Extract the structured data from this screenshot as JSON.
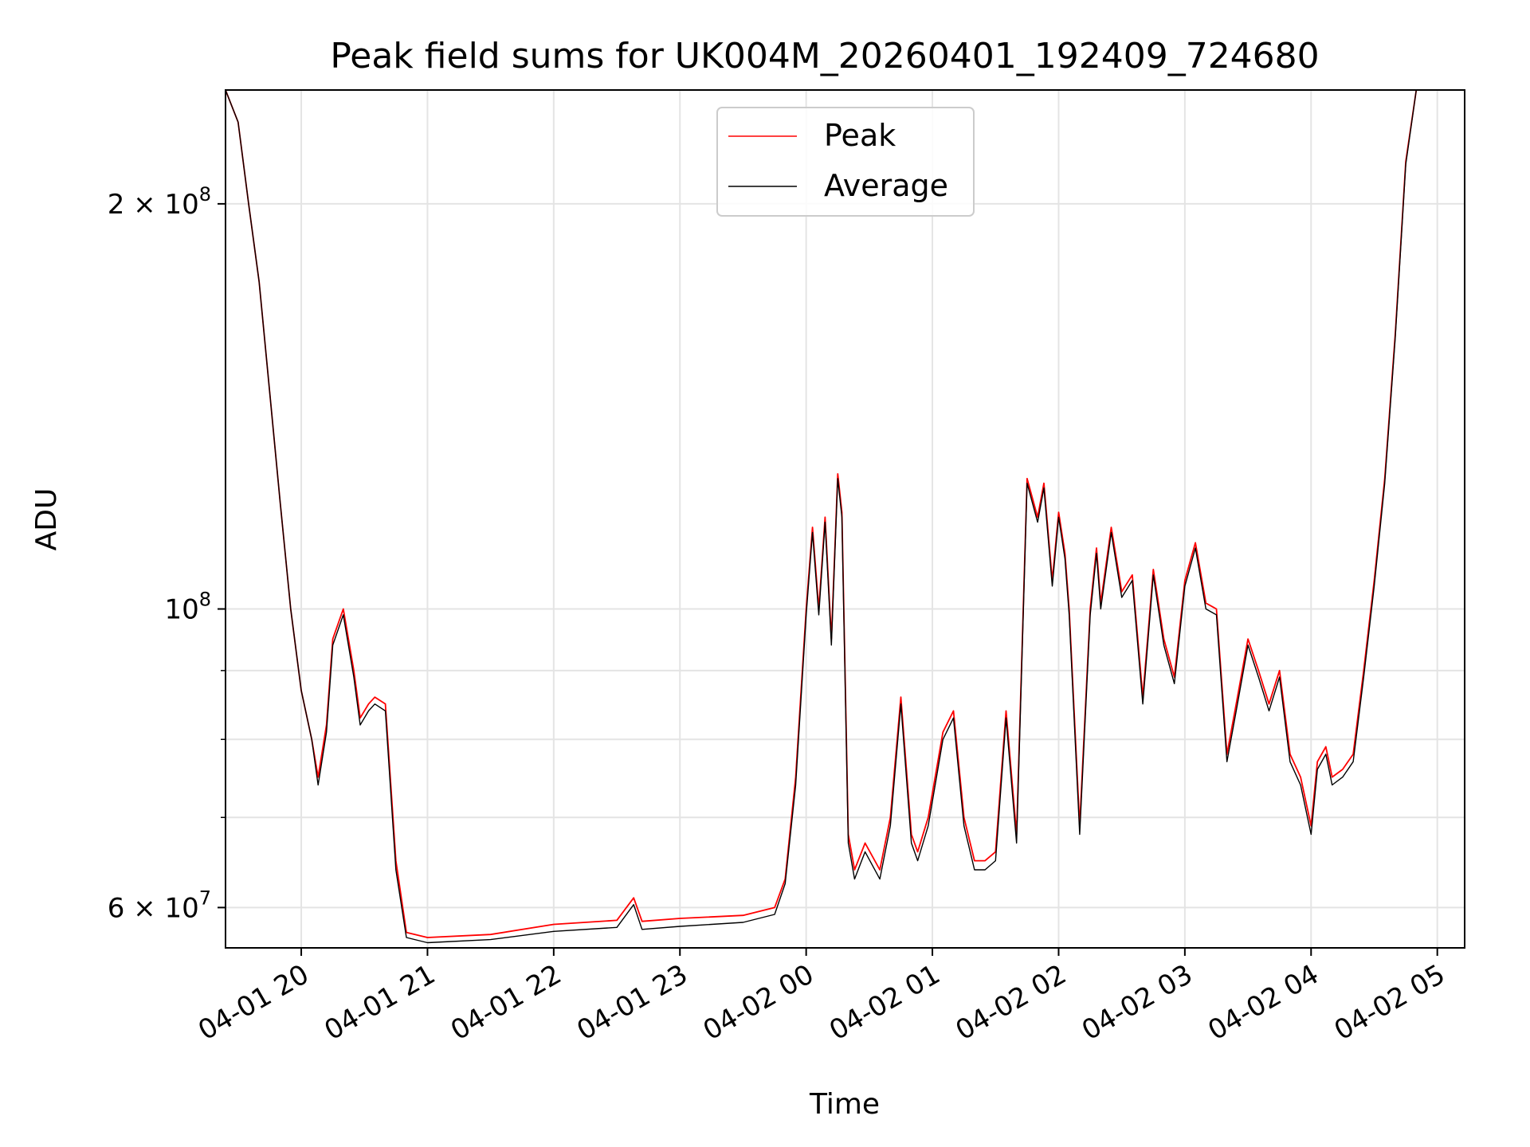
{
  "chart_data": {
    "type": "line",
    "title": "Peak field sums for UK004M_20260401_192409_724680",
    "xlabel": "Time",
    "ylabel": "ADU",
    "y_scale": "log",
    "ylim": [
      56000000,
      243000000
    ],
    "xlim": [
      "2026-04-01 19:24",
      "2026-04-02 05:13"
    ],
    "grid": true,
    "legend_position": "top-center",
    "x_ticks": [
      {
        "value": "2026-04-01 20:00",
        "label": "04-01 20"
      },
      {
        "value": "2026-04-01 21:00",
        "label": "04-01 21"
      },
      {
        "value": "2026-04-01 22:00",
        "label": "04-01 22"
      },
      {
        "value": "2026-04-01 23:00",
        "label": "04-01 23"
      },
      {
        "value": "2026-04-02 00:00",
        "label": "04-02 00"
      },
      {
        "value": "2026-04-02 01:00",
        "label": "04-02 01"
      },
      {
        "value": "2026-04-02 02:00",
        "label": "04-02 02"
      },
      {
        "value": "2026-04-02 03:00",
        "label": "04-02 03"
      },
      {
        "value": "2026-04-02 04:00",
        "label": "04-02 04"
      },
      {
        "value": "2026-04-02 05:00",
        "label": "04-02 05"
      }
    ],
    "y_ticks": [
      {
        "value": 200000000,
        "label": "2 × 10",
        "exp": "8"
      },
      {
        "value": 100000000,
        "label": "10",
        "exp": "8"
      },
      {
        "value": 60000000,
        "label": "6 × 10",
        "exp": "7"
      }
    ],
    "y_minor_ticks": [
      70000000,
      80000000,
      90000000
    ],
    "x": [
      "2026-04-01 19:24",
      "2026-04-01 19:30",
      "2026-04-01 19:35",
      "2026-04-01 19:40",
      "2026-04-01 19:45",
      "2026-04-01 19:50",
      "2026-04-01 19:55",
      "2026-04-01 20:00",
      "2026-04-01 20:05",
      "2026-04-01 20:08",
      "2026-04-01 20:12",
      "2026-04-01 20:15",
      "2026-04-01 20:20",
      "2026-04-01 20:25",
      "2026-04-01 20:28",
      "2026-04-01 20:32",
      "2026-04-01 20:35",
      "2026-04-01 20:40",
      "2026-04-01 20:45",
      "2026-04-01 20:50",
      "2026-04-01 21:00",
      "2026-04-01 21:30",
      "2026-04-01 22:00",
      "2026-04-01 22:30",
      "2026-04-01 22:38",
      "2026-04-01 22:42",
      "2026-04-01 23:00",
      "2026-04-01 23:30",
      "2026-04-01 23:45",
      "2026-04-01 23:50",
      "2026-04-01 23:55",
      "2026-04-02 00:00",
      "2026-04-02 00:03",
      "2026-04-02 00:06",
      "2026-04-02 00:09",
      "2026-04-02 00:12",
      "2026-04-02 00:15",
      "2026-04-02 00:17",
      "2026-04-02 00:20",
      "2026-04-02 00:23",
      "2026-04-02 00:28",
      "2026-04-02 00:35",
      "2026-04-02 00:40",
      "2026-04-02 00:45",
      "2026-04-02 00:50",
      "2026-04-02 00:53",
      "2026-04-02 00:58",
      "2026-04-02 01:05",
      "2026-04-02 01:10",
      "2026-04-02 01:15",
      "2026-04-02 01:20",
      "2026-04-02 01:25",
      "2026-04-02 01:30",
      "2026-04-02 01:35",
      "2026-04-02 01:40",
      "2026-04-02 01:45",
      "2026-04-02 01:50",
      "2026-04-02 01:53",
      "2026-04-02 01:57",
      "2026-04-02 02:00",
      "2026-04-02 02:03",
      "2026-04-02 02:05",
      "2026-04-02 02:10",
      "2026-04-02 02:15",
      "2026-04-02 02:18",
      "2026-04-02 02:20",
      "2026-04-02 02:25",
      "2026-04-02 02:30",
      "2026-04-02 02:35",
      "2026-04-02 02:40",
      "2026-04-02 02:45",
      "2026-04-02 02:50",
      "2026-04-02 02:55",
      "2026-04-02 03:00",
      "2026-04-02 03:05",
      "2026-04-02 03:10",
      "2026-04-02 03:15",
      "2026-04-02 03:20",
      "2026-04-02 03:25",
      "2026-04-02 03:30",
      "2026-04-02 03:35",
      "2026-04-02 03:40",
      "2026-04-02 03:45",
      "2026-04-02 03:50",
      "2026-04-02 03:55",
      "2026-04-02 04:00",
      "2026-04-02 04:03",
      "2026-04-02 04:07",
      "2026-04-02 04:10",
      "2026-04-02 04:15",
      "2026-04-02 04:20",
      "2026-04-02 04:25",
      "2026-04-02 04:30",
      "2026-04-02 04:35",
      "2026-04-02 04:40",
      "2026-04-02 04:45",
      "2026-04-02 04:50",
      "2026-04-02 04:55",
      "2026-04-02 05:00",
      "2026-04-02 05:05",
      "2026-04-02 05:10",
      "2026-04-02 05:13"
    ],
    "series": [
      {
        "name": "Peak",
        "color": "#ff0000",
        "values": [
          243000000,
          230000000,
          200000000,
          175000000,
          145000000,
          120000000,
          100000000,
          87000000,
          80000000,
          75000000,
          82000000,
          95000000,
          100000000,
          90000000,
          83000000,
          85000000,
          86000000,
          85000000,
          65000000,
          57500000,
          57000000,
          57300000,
          58300000,
          58700000,
          61000000,
          58600000,
          58900000,
          59200000,
          60000000,
          63000000,
          75000000,
          100000000,
          115000000,
          100000000,
          117000000,
          95000000,
          126000000,
          118000000,
          68000000,
          64000000,
          67000000,
          64000000,
          70000000,
          86000000,
          68000000,
          66000000,
          70000000,
          81000000,
          84000000,
          70000000,
          65000000,
          65000000,
          66000000,
          84000000,
          68000000,
          125000000,
          117000000,
          124000000,
          105000000,
          118000000,
          110000000,
          100000000,
          69000000,
          100000000,
          111000000,
          101000000,
          115000000,
          103000000,
          106000000,
          86000000,
          107000000,
          95000000,
          89000000,
          105000000,
          112000000,
          101000000,
          100000000,
          78000000,
          86000000,
          95000000,
          90000000,
          85000000,
          90000000,
          78000000,
          75000000,
          69000000,
          77000000,
          79000000,
          75000000,
          76000000,
          78000000,
          90000000,
          105000000,
          125000000,
          160000000,
          215000000,
          243000000,
          243000000,
          243000000,
          243000000,
          243000000,
          243000000
        ]
      },
      {
        "name": "Average",
        "color": "#000000",
        "values": [
          243000000,
          230000000,
          200000000,
          175000000,
          145000000,
          120000000,
          100000000,
          87000000,
          80000000,
          74000000,
          81000000,
          94000000,
          99000000,
          89000000,
          82000000,
          84000000,
          85000000,
          84000000,
          64000000,
          57000000,
          56500000,
          56800000,
          57600000,
          58000000,
          60300000,
          57800000,
          58100000,
          58500000,
          59300000,
          62500000,
          74000000,
          99000000,
          114000000,
          99000000,
          116000000,
          94000000,
          125000000,
          117000000,
          67000000,
          63000000,
          66000000,
          63000000,
          69000000,
          85000000,
          67000000,
          65000000,
          69000000,
          80000000,
          83000000,
          69000000,
          64000000,
          64000000,
          65000000,
          83000000,
          67000000,
          124000000,
          116000000,
          123000000,
          104000000,
          117000000,
          109000000,
          99000000,
          68000000,
          99000000,
          110000000,
          100000000,
          114000000,
          102000000,
          105000000,
          85000000,
          106000000,
          94000000,
          88000000,
          104000000,
          111000000,
          100000000,
          99000000,
          77000000,
          85000000,
          94000000,
          89000000,
          84000000,
          89000000,
          77000000,
          74000000,
          68000000,
          76000000,
          78000000,
          74000000,
          75000000,
          77000000,
          89000000,
          104000000,
          124000000,
          159000000,
          214000000,
          243000000,
          243000000,
          243000000,
          243000000,
          243000000,
          243000000
        ]
      }
    ]
  }
}
